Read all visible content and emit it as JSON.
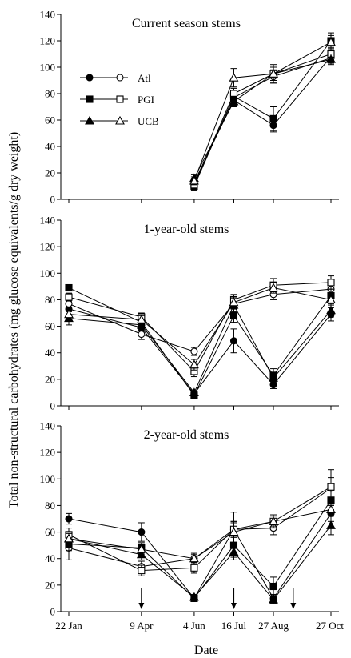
{
  "chart_data": {
    "type": "line",
    "ylabel": "Total non-structural carbohydrates (mg glucose equivalents/g dry weight)",
    "xlabel": "Date",
    "x_ticks": [
      "22 Jan",
      "9 Apr",
      "4 Jun",
      "16 Jul",
      "27 Aug",
      "27 Oct"
    ],
    "x_day_of_year": [
      22,
      99,
      155,
      197,
      239,
      300
    ],
    "arrows_day_of_year": [
      99,
      197,
      260
    ],
    "legend": {
      "placement": "upper-left of top panel",
      "entries": [
        {
          "label": "Atl",
          "filled_marker": "circle",
          "open_marker": "circle"
        },
        {
          "label": "PGI",
          "filled_marker": "square",
          "open_marker": "square"
        },
        {
          "label": "UCB",
          "filled_marker": "triangle",
          "open_marker": "triangle"
        }
      ]
    },
    "panels": [
      {
        "title": "Current season stems",
        "ylim": [
          0,
          140
        ],
        "yticks": [
          0,
          20,
          40,
          60,
          80,
          100,
          120,
          140
        ],
        "series": [
          {
            "name": "Atl",
            "marker": "circle",
            "filled": true,
            "x": [
              155,
              197,
              239,
              300
            ],
            "y": [
              13,
              75,
              56,
              108
            ],
            "err": [
              3,
              4,
              5,
              4
            ]
          },
          {
            "name": "Atl",
            "marker": "circle",
            "filled": false,
            "x": [
              155,
              197,
              239,
              300
            ],
            "y": [
              12,
              77,
              93,
              107
            ],
            "err": [
              3,
              4,
              5,
              4
            ]
          },
          {
            "name": "PGI",
            "marker": "square",
            "filled": true,
            "x": [
              155,
              197,
              239,
              300
            ],
            "y": [
              10,
              78,
              61,
              120
            ],
            "err": [
              3,
              4,
              9,
              6
            ]
          },
          {
            "name": "PGI",
            "marker": "square",
            "filled": false,
            "x": [
              155,
              197,
              239,
              300
            ],
            "y": [
              11,
              80,
              95,
              110
            ],
            "err": [
              3,
              4,
              7,
              5
            ]
          },
          {
            "name": "UCB",
            "marker": "triangle",
            "filled": true,
            "x": [
              155,
              197,
              239,
              300
            ],
            "y": [
              16,
              74,
              95,
              106
            ],
            "err": [
              3,
              4,
              5,
              4
            ]
          },
          {
            "name": "UCB",
            "marker": "triangle",
            "filled": false,
            "x": [
              155,
              197,
              239,
              300
            ],
            "y": [
              14,
              92,
              95,
              119
            ],
            "err": [
              3,
              7,
              5,
              5
            ]
          }
        ]
      },
      {
        "title": "1-year-old stems",
        "ylim": [
          0,
          140
        ],
        "yticks": [
          0,
          20,
          40,
          60,
          80,
          100,
          120,
          140
        ],
        "series": [
          {
            "name": "Atl",
            "marker": "circle",
            "filled": true,
            "x": [
              22,
              99,
              155,
              197,
              239,
              300
            ],
            "y": [
              73,
              59,
              9,
              49,
              16,
              69
            ],
            "err": [
              4,
              4,
              2,
              9,
              3,
              5
            ]
          },
          {
            "name": "Atl",
            "marker": "circle",
            "filled": false,
            "x": [
              22,
              99,
              155,
              197,
              239,
              300
            ],
            "y": [
              77,
              54,
              41,
              77,
              84,
              88
            ],
            "err": [
              4,
              4,
              3,
              4,
              4,
              5
            ]
          },
          {
            "name": "PGI",
            "marker": "square",
            "filled": true,
            "x": [
              22,
              99,
              155,
              197,
              239,
              300
            ],
            "y": [
              89,
              63,
              8,
              68,
              23,
              83
            ],
            "err": [
              2,
              4,
              2,
              5,
              5,
              5
            ]
          },
          {
            "name": "PGI",
            "marker": "square",
            "filled": false,
            "x": [
              22,
              99,
              155,
              197,
              239,
              300
            ],
            "y": [
              82,
              67,
              26,
              80,
              91,
              93
            ],
            "err": [
              3,
              3,
              4,
              4,
              5,
              5
            ]
          },
          {
            "name": "UCB",
            "marker": "triangle",
            "filled": true,
            "x": [
              22,
              99,
              155,
              197,
              239,
              300
            ],
            "y": [
              66,
              61,
              10,
              76,
              21,
              72
            ],
            "err": [
              5,
              4,
              2,
              5,
              4,
              5
            ]
          },
          {
            "name": "UCB",
            "marker": "triangle",
            "filled": false,
            "x": [
              22,
              99,
              155,
              197,
              239,
              300
            ],
            "y": [
              69,
              65,
              31,
              78,
              89,
              80
            ],
            "err": [
              4,
              3,
              4,
              4,
              4,
              4
            ]
          }
        ]
      },
      {
        "title": "2-year-old stems",
        "ylim": [
          0,
          140
        ],
        "yticks": [
          0,
          20,
          40,
          60,
          80,
          100,
          120,
          140
        ],
        "series": [
          {
            "name": "Atl",
            "marker": "circle",
            "filled": true,
            "x": [
              22,
              99,
              155,
              197,
              239,
              300
            ],
            "y": [
              70,
              60,
              10,
              62,
              10,
              74
            ],
            "err": [
              4,
              7,
              2,
              6,
              3,
              6
            ]
          },
          {
            "name": "Atl",
            "marker": "circle",
            "filled": false,
            "x": [
              22,
              99,
              155,
              197,
              239,
              300
            ],
            "y": [
              48,
              34,
              40,
              62,
              63,
              93
            ],
            "err": [
              9,
              4,
              4,
              6,
              5,
              8
            ]
          },
          {
            "name": "PGI",
            "marker": "square",
            "filled": true,
            "x": [
              22,
              99,
              155,
              197,
              239,
              300
            ],
            "y": [
              51,
              48,
              10,
              50,
              19,
              84
            ],
            "err": [
              5,
              4,
              2,
              9,
              7,
              7
            ]
          },
          {
            "name": "PGI",
            "marker": "square",
            "filled": false,
            "x": [
              22,
              99,
              155,
              197,
              239,
              300
            ],
            "y": [
              58,
              31,
              33,
              62,
              68,
              94
            ],
            "err": [
              5,
              4,
              4,
              5,
              5,
              13
            ]
          },
          {
            "name": "UCB",
            "marker": "triangle",
            "filled": true,
            "x": [
              22,
              99,
              155,
              197,
              239,
              300
            ],
            "y": [
              55,
              43,
              11,
              45,
              9,
              65
            ],
            "err": [
              4,
              4,
              2,
              6,
              3,
              7
            ]
          },
          {
            "name": "UCB",
            "marker": "triangle",
            "filled": false,
            "x": [
              22,
              99,
              155,
              197,
              239,
              300
            ],
            "y": [
              55,
              47,
              40,
              60,
              68,
              77
            ],
            "err": [
              4,
              4,
              3,
              15,
              4,
              5
            ]
          }
        ]
      }
    ]
  }
}
